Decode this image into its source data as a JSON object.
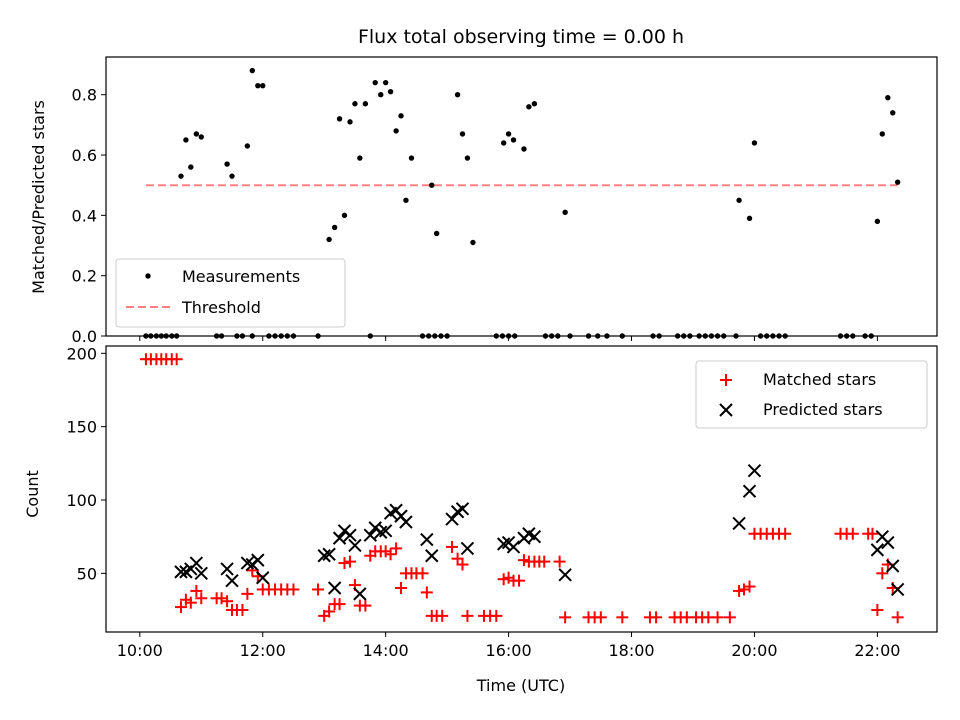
{
  "chart_data": [
    {
      "type": "scatter",
      "title": "Flux total observing time = 0.00 h",
      "xlabel": "",
      "ylabel": "Matched/Predicted stars",
      "xlim": [
        9.45,
        22.97
      ],
      "ylim": [
        0.0,
        0.925
      ],
      "yticks": [
        0.0,
        0.2,
        0.4,
        0.6,
        0.8
      ],
      "ytick_labels": [
        "0.0",
        "0.2",
        "0.4",
        "0.6",
        "0.8"
      ],
      "legend": {
        "position": "lower-left",
        "entries": [
          "Measurements",
          "Threshold"
        ]
      },
      "threshold": {
        "name": "Threshold",
        "value": 0.5,
        "x": [
          10.1,
          22.33
        ],
        "color": "#ff8080"
      },
      "series": [
        {
          "name": "Measurements",
          "color": "#000000",
          "points": [
            [
              10.67,
              0.53
            ],
            [
              10.75,
              0.65
            ],
            [
              10.83,
              0.56
            ],
            [
              10.92,
              0.67
            ],
            [
              11.0,
              0.66
            ],
            [
              11.42,
              0.57
            ],
            [
              11.5,
              0.53
            ],
            [
              11.75,
              0.63
            ],
            [
              11.83,
              0.88
            ],
            [
              11.92,
              0.83
            ],
            [
              12.0,
              0.83
            ],
            [
              13.08,
              0.32
            ],
            [
              13.17,
              0.36
            ],
            [
              13.25,
              0.72
            ],
            [
              13.33,
              0.4
            ],
            [
              13.42,
              0.71
            ],
            [
              13.5,
              0.77
            ],
            [
              13.58,
              0.59
            ],
            [
              13.67,
              0.77
            ],
            [
              13.83,
              0.84
            ],
            [
              13.92,
              0.8
            ],
            [
              14.0,
              0.84
            ],
            [
              14.08,
              0.81
            ],
            [
              14.17,
              0.68
            ],
            [
              14.25,
              0.73
            ],
            [
              14.33,
              0.45
            ],
            [
              14.42,
              0.59
            ],
            [
              14.75,
              0.5
            ],
            [
              14.83,
              0.34
            ],
            [
              15.17,
              0.8
            ],
            [
              15.25,
              0.67
            ],
            [
              15.33,
              0.59
            ],
            [
              15.42,
              0.31
            ],
            [
              15.92,
              0.64
            ],
            [
              16.0,
              0.67
            ],
            [
              16.08,
              0.65
            ],
            [
              16.25,
              0.62
            ],
            [
              16.33,
              0.76
            ],
            [
              16.42,
              0.77
            ],
            [
              16.92,
              0.41
            ],
            [
              19.75,
              0.45
            ],
            [
              19.92,
              0.39
            ],
            [
              20.0,
              0.64
            ],
            [
              22.0,
              0.38
            ],
            [
              22.08,
              0.67
            ],
            [
              22.17,
              0.79
            ],
            [
              22.25,
              0.74
            ],
            [
              22.33,
              0.51
            ],
            [
              10.1,
              0
            ],
            [
              10.18,
              0
            ],
            [
              10.27,
              0
            ],
            [
              10.35,
              0
            ],
            [
              10.43,
              0
            ],
            [
              10.52,
              0
            ],
            [
              10.6,
              0
            ],
            [
              11.25,
              0
            ],
            [
              11.33,
              0
            ],
            [
              11.58,
              0
            ],
            [
              11.67,
              0
            ],
            [
              11.83,
              0
            ],
            [
              12.1,
              0
            ],
            [
              12.2,
              0
            ],
            [
              12.3,
              0
            ],
            [
              12.4,
              0
            ],
            [
              12.5,
              0
            ],
            [
              12.9,
              0
            ],
            [
              13.75,
              0
            ],
            [
              14.6,
              0
            ],
            [
              14.7,
              0
            ],
            [
              14.8,
              0
            ],
            [
              14.9,
              0
            ],
            [
              15.0,
              0
            ],
            [
              15.8,
              0
            ],
            [
              15.9,
              0
            ],
            [
              16.0,
              0
            ],
            [
              16.1,
              0
            ],
            [
              16.6,
              0
            ],
            [
              16.7,
              0
            ],
            [
              16.8,
              0
            ],
            [
              17.0,
              0
            ],
            [
              17.3,
              0
            ],
            [
              17.45,
              0
            ],
            [
              17.6,
              0
            ],
            [
              17.85,
              0
            ],
            [
              18.35,
              0
            ],
            [
              18.45,
              0
            ],
            [
              18.75,
              0
            ],
            [
              18.85,
              0
            ],
            [
              18.95,
              0
            ],
            [
              19.1,
              0
            ],
            [
              19.2,
              0
            ],
            [
              19.3,
              0
            ],
            [
              19.4,
              0
            ],
            [
              19.5,
              0
            ],
            [
              19.7,
              0
            ],
            [
              20.1,
              0
            ],
            [
              20.2,
              0
            ],
            [
              20.3,
              0
            ],
            [
              20.4,
              0
            ],
            [
              20.5,
              0
            ],
            [
              21.4,
              0
            ],
            [
              21.5,
              0
            ],
            [
              21.6,
              0
            ],
            [
              21.8,
              0
            ],
            [
              21.9,
              0
            ]
          ]
        }
      ]
    },
    {
      "type": "scatter",
      "title": "",
      "xlabel": "Time (UTC)",
      "ylabel": "Count",
      "xlim": [
        9.45,
        22.97
      ],
      "ylim": [
        10.0,
        205.0
      ],
      "xticks": [
        10,
        12,
        14,
        16,
        18,
        20,
        22
      ],
      "xtick_labels": [
        "10:00",
        "12:00",
        "14:00",
        "16:00",
        "18:00",
        "20:00",
        "22:00"
      ],
      "yticks": [
        50,
        100,
        150,
        200
      ],
      "ytick_labels": [
        "50",
        "100",
        "150",
        "200"
      ],
      "legend": {
        "position": "top-right",
        "entries": [
          "Matched stars",
          "Predicted stars"
        ]
      },
      "series": [
        {
          "name": "Matched stars",
          "marker": "plus",
          "color": "#ff0000",
          "points": [
            [
              10.1,
              196
            ],
            [
              10.18,
              196
            ],
            [
              10.27,
              196
            ],
            [
              10.35,
              196
            ],
            [
              10.43,
              196
            ],
            [
              10.52,
              196
            ],
            [
              10.6,
              196
            ],
            [
              10.67,
              27
            ],
            [
              10.75,
              32
            ],
            [
              10.83,
              30
            ],
            [
              10.92,
              38
            ],
            [
              11.0,
              33
            ],
            [
              11.25,
              33
            ],
            [
              11.33,
              33
            ],
            [
              11.42,
              31
            ],
            [
              11.5,
              25
            ],
            [
              11.58,
              25
            ],
            [
              11.67,
              25
            ],
            [
              11.75,
              36
            ],
            [
              11.83,
              52
            ],
            [
              11.92,
              48
            ],
            [
              12.0,
              39
            ],
            [
              12.1,
              39
            ],
            [
              12.2,
              39
            ],
            [
              12.3,
              39
            ],
            [
              12.4,
              39
            ],
            [
              12.5,
              39
            ],
            [
              12.9,
              39
            ],
            [
              13.0,
              21
            ],
            [
              13.08,
              24
            ],
            [
              13.17,
              29
            ],
            [
              13.25,
              29
            ],
            [
              13.33,
              57
            ],
            [
              13.42,
              58
            ],
            [
              13.5,
              42
            ],
            [
              13.58,
              28
            ],
            [
              13.67,
              28
            ],
            [
              13.75,
              62
            ],
            [
              13.83,
              65
            ],
            [
              13.92,
              65
            ],
            [
              14.0,
              65
            ],
            [
              14.08,
              63
            ],
            [
              14.17,
              67
            ],
            [
              14.25,
              40
            ],
            [
              14.33,
              50
            ],
            [
              14.42,
              50
            ],
            [
              14.5,
              50
            ],
            [
              14.6,
              50
            ],
            [
              14.67,
              37
            ],
            [
              14.75,
              21
            ],
            [
              14.83,
              21
            ],
            [
              14.92,
              21
            ],
            [
              15.08,
              68
            ],
            [
              15.17,
              60
            ],
            [
              15.25,
              56
            ],
            [
              15.33,
              21
            ],
            [
              15.6,
              21
            ],
            [
              15.7,
              21
            ],
            [
              15.8,
              21
            ],
            [
              15.92,
              46
            ],
            [
              16.0,
              47
            ],
            [
              16.08,
              45
            ],
            [
              16.17,
              45
            ],
            [
              16.25,
              59
            ],
            [
              16.33,
              58
            ],
            [
              16.42,
              58
            ],
            [
              16.5,
              58
            ],
            [
              16.58,
              58
            ],
            [
              16.83,
              58
            ],
            [
              16.92,
              20
            ],
            [
              17.3,
              20
            ],
            [
              17.4,
              20
            ],
            [
              17.5,
              20
            ],
            [
              17.85,
              20
            ],
            [
              18.3,
              20
            ],
            [
              18.4,
              20
            ],
            [
              18.7,
              20
            ],
            [
              18.8,
              20
            ],
            [
              18.9,
              20
            ],
            [
              19.05,
              20
            ],
            [
              19.15,
              20
            ],
            [
              19.25,
              20
            ],
            [
              19.4,
              20
            ],
            [
              19.6,
              20
            ],
            [
              19.75,
              38
            ],
            [
              19.83,
              39
            ],
            [
              19.92,
              41
            ],
            [
              20.0,
              77
            ],
            [
              20.1,
              77
            ],
            [
              20.2,
              77
            ],
            [
              20.3,
              77
            ],
            [
              20.4,
              77
            ],
            [
              20.5,
              77
            ],
            [
              21.4,
              77
            ],
            [
              21.5,
              77
            ],
            [
              21.6,
              77
            ],
            [
              21.85,
              77
            ],
            [
              21.92,
              77
            ],
            [
              22.0,
              25
            ],
            [
              22.08,
              50
            ],
            [
              22.17,
              56
            ],
            [
              22.25,
              40
            ],
            [
              22.33,
              20
            ]
          ]
        },
        {
          "name": "Predicted stars",
          "marker": "x",
          "color": "#000000",
          "points": [
            [
              10.67,
              51
            ],
            [
              10.75,
              51
            ],
            [
              10.83,
              53
            ],
            [
              10.92,
              57
            ],
            [
              11.0,
              50
            ],
            [
              11.42,
              53
            ],
            [
              11.5,
              45
            ],
            [
              11.75,
              57
            ],
            [
              11.83,
              56
            ],
            [
              11.92,
              59
            ],
            [
              12.0,
              47
            ],
            [
              13.0,
              62
            ],
            [
              13.08,
              63
            ],
            [
              13.17,
              40
            ],
            [
              13.25,
              74
            ],
            [
              13.33,
              79
            ],
            [
              13.42,
              76
            ],
            [
              13.5,
              69
            ],
            [
              13.58,
              36
            ],
            [
              13.75,
              76
            ],
            [
              13.83,
              81
            ],
            [
              13.92,
              78
            ],
            [
              14.0,
              79
            ],
            [
              14.08,
              91
            ],
            [
              14.17,
              93
            ],
            [
              14.25,
              89
            ],
            [
              14.33,
              85
            ],
            [
              14.67,
              73
            ],
            [
              14.75,
              62
            ],
            [
              15.08,
              87
            ],
            [
              15.17,
              92
            ],
            [
              15.25,
              94
            ],
            [
              15.33,
              67
            ],
            [
              15.92,
              70
            ],
            [
              16.0,
              71
            ],
            [
              16.08,
              68
            ],
            [
              16.25,
              74
            ],
            [
              16.33,
              77
            ],
            [
              16.42,
              75
            ],
            [
              16.92,
              49
            ],
            [
              19.75,
              84
            ],
            [
              19.92,
              106
            ],
            [
              20.0,
              120
            ],
            [
              22.0,
              66
            ],
            [
              22.08,
              75
            ],
            [
              22.17,
              71
            ],
            [
              22.25,
              55
            ],
            [
              22.33,
              39
            ]
          ]
        }
      ]
    }
  ]
}
